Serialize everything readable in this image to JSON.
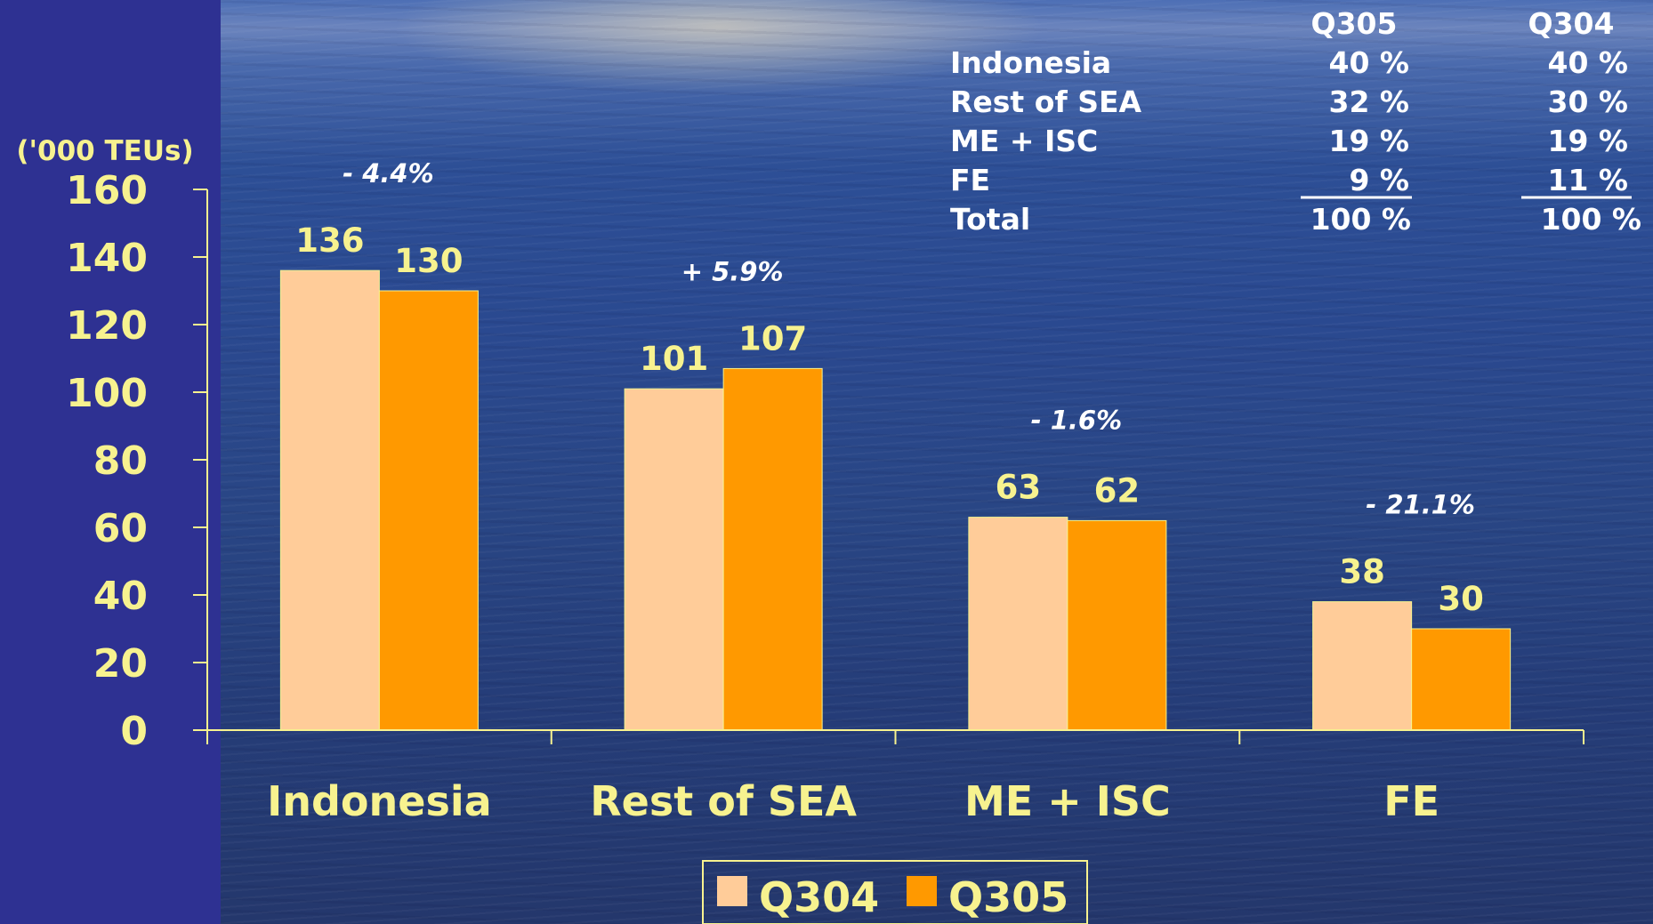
{
  "chart_data": {
    "type": "bar",
    "unit_label": "('000 TEUs)",
    "categories": [
      "Indonesia",
      "Rest of SEA",
      "ME + ISC",
      "FE"
    ],
    "series": [
      {
        "name": "Q304",
        "values": [
          136,
          101,
          63,
          38
        ],
        "color": "#ffcc99"
      },
      {
        "name": "Q305",
        "values": [
          130,
          107,
          62,
          30
        ],
        "color": "#ff9900"
      }
    ],
    "changes": [
      "- 4.4%",
      "+ 5.9%",
      "- 1.6%",
      "-  21.1%"
    ],
    "ylim": [
      0,
      160
    ],
    "yticks": [
      "0",
      "20",
      "40",
      "60",
      "80",
      "100",
      "120",
      "140",
      "160"
    ],
    "legend_position": "bottom-center",
    "grid": false
  },
  "share_table": {
    "headers": [
      "Q305",
      "Q304"
    ],
    "rows": [
      {
        "label": "Indonesia",
        "q305": "40 %",
        "q304": "40 %"
      },
      {
        "label": "Rest of SEA",
        "q305": "32 %",
        "q304": "30 %"
      },
      {
        "label": "ME + ISC",
        "q305": "19 %",
        "q304": "19 %"
      },
      {
        "label": "FE",
        "q305": "9 %",
        "q304": "11 %"
      },
      {
        "label": "Total",
        "q305": "100 %",
        "q304": "100 %"
      }
    ]
  },
  "colors": {
    "text_yellow": "#f7f28f",
    "left_band": "#2e3192",
    "axis": "#f7f28f"
  }
}
